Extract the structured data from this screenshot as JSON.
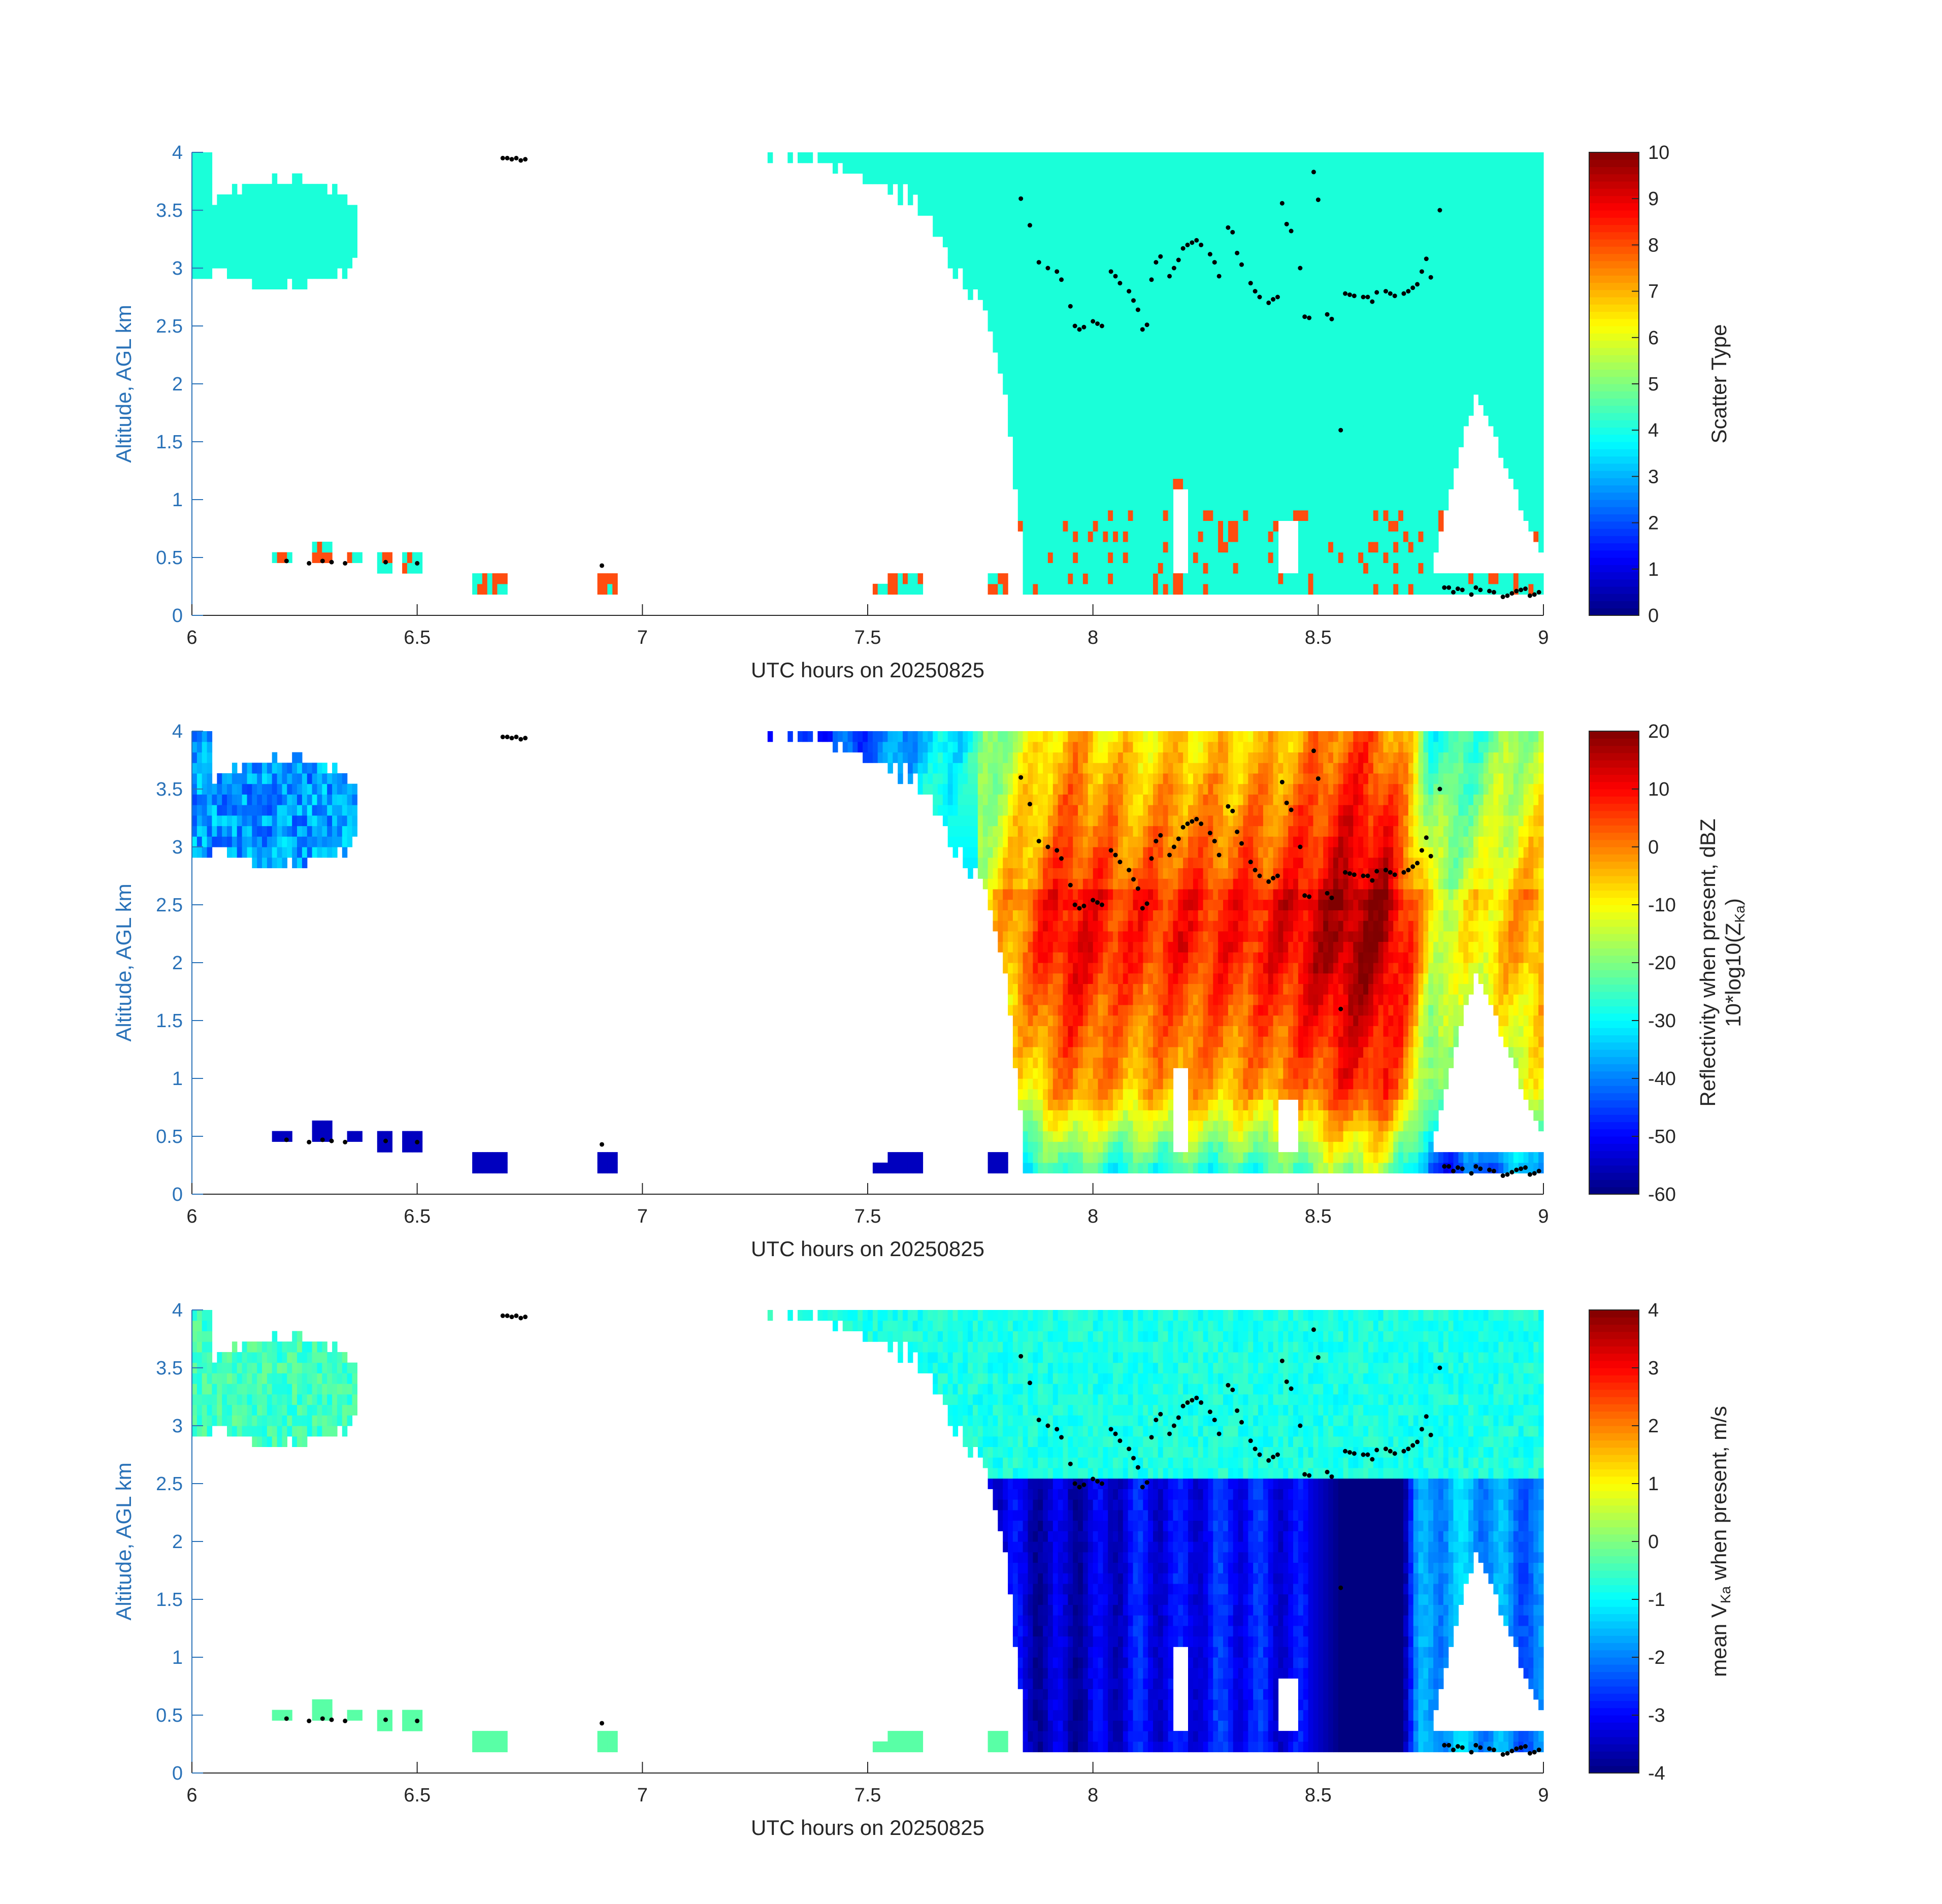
{
  "figure": {
    "colors": {
      "axis_text_left": "#2a72b8",
      "axis_text_dark": "#262626",
      "axis_line_left": "#2a72b8",
      "axis_line_dark": "#262626",
      "scatter_cloud": "#1affd9",
      "scatter_rain": "#ff4d10",
      "dots": "#000000"
    }
  },
  "chart_data": [
    {
      "type": "heatmap",
      "panel": "scatter-type",
      "xlabel": "UTC hours on 20250825",
      "ylabel": "Altitude, AGL km",
      "xlim": [
        6,
        9
      ],
      "ylim": [
        0,
        4
      ],
      "xticks": [
        "6",
        "6.5",
        "7",
        "7.5",
        "8",
        "8.5",
        "9"
      ],
      "yticks": [
        "0",
        "0.5",
        "1",
        "1.5",
        "2",
        "2.5",
        "3",
        "3.5",
        "4"
      ],
      "colorbar": {
        "label": "Scatter Type",
        "colormap": "jet",
        "range": [
          0,
          10
        ],
        "ticks": [
          "0",
          "1",
          "2",
          "3",
          "4",
          "5",
          "6",
          "7",
          "8",
          "9",
          "10"
        ]
      },
      "dominant_value": 4,
      "secondary_value": 8,
      "dot_color": "black"
    },
    {
      "type": "heatmap",
      "panel": "reflectivity",
      "xlabel": "UTC hours on 20250825",
      "ylabel": "Altitude, AGL km",
      "xlim": [
        6,
        9
      ],
      "ylim": [
        0,
        4
      ],
      "xticks": [
        "6",
        "6.5",
        "7",
        "7.5",
        "8",
        "8.5",
        "9"
      ],
      "yticks": [
        "0",
        "0.5",
        "1",
        "1.5",
        "2",
        "2.5",
        "3",
        "3.5",
        "4"
      ],
      "colorbar": {
        "label_line1": "Reflectivity when present, dBZ",
        "label_line2_prefix": "10*log10(Z",
        "label_line2_sub": "Ka",
        "label_line2_suffix": ")",
        "colormap": "jet",
        "range": [
          -60,
          20
        ],
        "ticks": [
          "-60",
          "-50",
          "-40",
          "-30",
          "-20",
          "-10",
          "0",
          "10",
          "20"
        ]
      },
      "dot_color": "black"
    },
    {
      "type": "heatmap",
      "panel": "doppler-velocity",
      "xlabel": "UTC hours on 20250825",
      "ylabel": "Altitude, AGL km",
      "xlim": [
        6,
        9
      ],
      "ylim": [
        0,
        4
      ],
      "xticks": [
        "6",
        "6.5",
        "7",
        "7.5",
        "8",
        "8.5",
        "9"
      ],
      "yticks": [
        "0",
        "0.5",
        "1",
        "1.5",
        "2",
        "2.5",
        "3",
        "3.5",
        "4"
      ],
      "colorbar": {
        "label_prefix": "mean V",
        "label_sub": "Ka",
        "label_suffix": " when present, m/s",
        "colormap": "jet",
        "range": [
          -4,
          4
        ],
        "ticks": [
          "-4",
          "-3",
          "-2",
          "-1",
          "0",
          "1",
          "2",
          "3",
          "4"
        ]
      },
      "dot_color": "black"
    }
  ],
  "cloud_echo": {
    "top_km": 4.0,
    "base_km_at": [
      [
        7.2,
        4.0
      ],
      [
        7.3,
        3.99
      ],
      [
        7.4,
        3.93
      ],
      [
        7.5,
        3.72
      ],
      [
        7.6,
        3.6
      ],
      [
        7.65,
        3.33
      ],
      [
        7.7,
        2.92
      ],
      [
        7.75,
        2.72
      ],
      [
        7.8,
        2.05
      ],
      [
        7.82,
        1.55
      ],
      [
        7.85,
        0.2
      ],
      [
        9.0,
        0.2
      ]
    ],
    "lower_notches": [
      {
        "x0": 8.18,
        "x1": 8.21,
        "top_km": 1.1
      },
      {
        "x0": 8.41,
        "x1": 8.45,
        "top_km": 0.78
      },
      {
        "x0": 8.75,
        "x1": 9.0,
        "top_km": 1.95
      }
    ],
    "small_blob_x": [
      6.0,
      6.37
    ],
    "small_blob_y": [
      2.88,
      4.0
    ],
    "isolated_echoes": [
      {
        "x": 6.2,
        "y": 0.5
      },
      {
        "x": 6.29,
        "y": 0.52
      },
      {
        "x": 6.36,
        "y": 0.5
      },
      {
        "x": 6.43,
        "y": 0.47
      },
      {
        "x": 6.49,
        "y": 0.47
      },
      {
        "x": 6.64,
        "y": 0.25
      },
      {
        "x": 6.68,
        "y": 0.25
      },
      {
        "x": 6.92,
        "y": 0.25
      },
      {
        "x": 7.53,
        "y": 0.22
      },
      {
        "x": 7.56,
        "y": 0.25
      },
      {
        "x": 7.6,
        "y": 0.25
      },
      {
        "x": 7.79,
        "y": 0.25
      }
    ]
  },
  "cloud_base_dots": {
    "x": [
      6.21,
      6.26,
      6.29,
      6.31,
      6.34,
      6.43,
      6.5,
      6.69,
      6.7,
      6.71,
      6.72,
      6.73,
      6.74,
      6.91,
      7.84,
      7.86,
      7.88,
      7.9,
      7.92,
      7.93,
      7.95,
      7.96,
      7.97,
      7.98,
      8.0,
      8.01,
      8.02,
      8.04,
      8.05,
      8.06,
      8.08,
      8.09,
      8.1,
      8.11,
      8.12,
      8.13,
      8.14,
      8.15,
      8.17,
      8.18,
      8.19,
      8.2,
      8.21,
      8.22,
      8.23,
      8.24,
      8.26,
      8.27,
      8.28,
      8.3,
      8.31,
      8.32,
      8.33,
      8.35,
      8.36,
      8.37,
      8.39,
      8.4,
      8.41,
      8.42,
      8.43,
      8.44,
      8.46,
      8.47,
      8.48,
      8.49,
      8.5,
      8.52,
      8.53,
      8.55,
      8.56,
      8.57,
      8.58,
      8.6,
      8.61,
      8.62,
      8.63,
      8.65,
      8.66,
      8.67,
      8.69,
      8.7,
      8.71,
      8.72,
      8.73,
      8.74,
      8.75,
      8.77,
      8.78,
      8.79,
      8.8,
      8.81,
      8.82,
      8.84,
      8.85,
      8.86,
      8.88,
      8.89,
      8.91,
      8.92,
      8.93,
      8.94,
      8.95,
      8.96,
      8.97,
      8.98,
      8.99
    ],
    "y": [
      0.47,
      0.45,
      0.47,
      0.46,
      0.45,
      0.46,
      0.45,
      3.95,
      3.95,
      3.94,
      3.95,
      3.93,
      3.94,
      0.43,
      3.6,
      3.37,
      3.05,
      3.0,
      2.97,
      2.9,
      2.67,
      2.5,
      2.47,
      2.49,
      2.54,
      2.52,
      2.5,
      2.97,
      2.93,
      2.87,
      2.8,
      2.72,
      2.64,
      2.47,
      2.51,
      2.9,
      3.05,
      3.1,
      2.93,
      3.0,
      3.07,
      3.17,
      3.2,
      3.22,
      3.24,
      3.2,
      3.12,
      3.05,
      2.93,
      3.35,
      3.31,
      3.13,
      3.03,
      2.87,
      2.8,
      2.75,
      2.7,
      2.73,
      2.75,
      3.56,
      3.38,
      3.32,
      3.0,
      2.58,
      2.57,
      3.83,
      3.59,
      2.6,
      2.56,
      1.6,
      2.78,
      2.77,
      2.76,
      2.75,
      2.75,
      2.71,
      2.79,
      2.8,
      2.78,
      2.76,
      2.78,
      2.8,
      2.83,
      2.86,
      2.97,
      3.08,
      2.92,
      3.5,
      0.24,
      0.24,
      0.2,
      0.23,
      0.22,
      0.18,
      0.24,
      0.22,
      0.21,
      0.2,
      0.16,
      0.17,
      0.19,
      0.21,
      0.22,
      0.23,
      0.17,
      0.18,
      0.2
    ]
  },
  "reflectivity_profile": {
    "x_nodes": [
      7.2,
      7.5,
      7.7,
      7.8,
      7.9,
      7.95,
      8.0,
      8.05,
      8.1,
      8.2,
      8.3,
      8.4,
      8.45,
      8.5,
      8.55,
      8.6,
      8.65,
      8.7,
      8.75,
      8.8,
      8.9,
      9.0
    ],
    "max_dbz": [
      -35,
      -28,
      -15,
      -3,
      8,
      12,
      10,
      8,
      7,
      9,
      8,
      10,
      12,
      15,
      18,
      19,
      17,
      8,
      -10,
      -12,
      -5,
      0
    ]
  },
  "velocity_profile": {
    "melting_level_km": 2.55,
    "above_mps": -0.8,
    "below_x_nodes": [
      7.75,
      7.9,
      8.0,
      8.1,
      8.2,
      8.3,
      8.4,
      8.48,
      8.55,
      8.68,
      8.72,
      8.8,
      9.0
    ],
    "below_mps": [
      -3.0,
      -3.5,
      -3.4,
      -3.0,
      -3.1,
      -2.8,
      -3.0,
      -3.2,
      -4.0,
      -4.0,
      -2.0,
      -1.5,
      -2.2
    ]
  }
}
